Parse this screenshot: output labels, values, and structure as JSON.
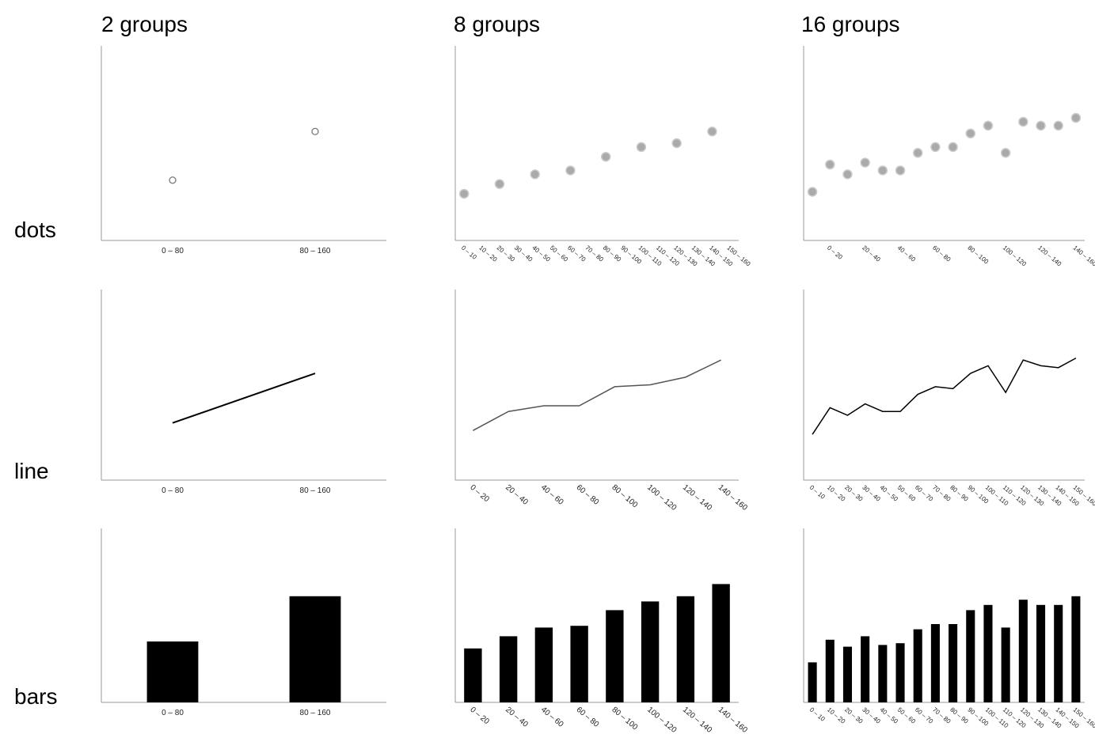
{
  "column_titles": [
    "2 groups",
    "8 groups",
    "16 groups"
  ],
  "row_labels": [
    "dots",
    "line",
    "bars"
  ],
  "chart_data": [
    {
      "type": "scatter",
      "categories": [
        "0 – 80",
        "80 – 160"
      ],
      "values": [
        31,
        56
      ],
      "ylim": [
        0,
        100
      ],
      "color": "#777"
    },
    {
      "type": "scatter",
      "categories": [
        "0 – 10",
        "10 – 20",
        "20 – 30",
        "30 – 40",
        "40 – 50",
        "50 – 60",
        "60 – 70",
        "70 – 80",
        "80 – 90",
        "90 – 100",
        "100 – 110",
        "110 – 120",
        "120 – 130",
        "130 – 140",
        "140 – 150",
        "150 – 160"
      ],
      "values": [
        24,
        null,
        29,
        null,
        34,
        null,
        36,
        null,
        43,
        null,
        48,
        null,
        50,
        null,
        56,
        null
      ],
      "ylim": [
        0,
        100
      ],
      "color": "#aaa"
    },
    {
      "type": "scatter",
      "categories": [
        null,
        "0 – 20",
        null,
        "20 – 40",
        null,
        "40 – 60",
        null,
        "60 – 80",
        null,
        "80 – 100",
        null,
        "100 – 120",
        null,
        "120 – 140",
        null,
        "140 – 160"
      ],
      "values": [
        25,
        39,
        34,
        40,
        36,
        36,
        45,
        48,
        48,
        55,
        59,
        45,
        61,
        59,
        59,
        63
      ],
      "ylim": [
        0,
        100
      ],
      "color": "#aaa"
    },
    {
      "type": "line",
      "categories": [
        "0 – 80",
        "80 – 160"
      ],
      "values": [
        30,
        56
      ],
      "ylim": [
        0,
        100
      ],
      "color": "#000"
    },
    {
      "type": "line",
      "categories": [
        "0 – 20",
        "20 – 40",
        "40 – 60",
        "60 – 80",
        "80 – 100",
        "100 – 120",
        "120 – 140",
        "140 – 160"
      ],
      "values": [
        26,
        36,
        39,
        39,
        49,
        50,
        54,
        63
      ],
      "ylim": [
        0,
        100
      ],
      "color": "#555"
    },
    {
      "type": "line",
      "categories": [
        "0 – 10",
        "10 – 20",
        "20 – 30",
        "30 – 40",
        "40 – 50",
        "50 – 60",
        "60 – 70",
        "70 – 80",
        "80 – 90",
        "90 – 100",
        "100 – 110",
        "110 – 120",
        "120 – 130",
        "130 – 140",
        "140 – 150",
        "150 – 160"
      ],
      "values": [
        24,
        38,
        34,
        40,
        36,
        36,
        45,
        49,
        48,
        56,
        60,
        46,
        63,
        60,
        59,
        64
      ],
      "ylim": [
        0,
        100
      ],
      "color": "#000"
    },
    {
      "type": "bar",
      "categories": [
        "0 – 80",
        "80 – 160"
      ],
      "values": [
        35,
        61
      ],
      "ylim": [
        0,
        100
      ],
      "color": "#000"
    },
    {
      "type": "bar",
      "categories": [
        "0 – 20",
        "20 – 40",
        "40 – 60",
        "60 – 80",
        "80 – 100",
        "100 – 120",
        "120 – 140",
        "140 – 160"
      ],
      "values": [
        31,
        38,
        43,
        44,
        53,
        58,
        61,
        68
      ],
      "ylim": [
        0,
        100
      ],
      "color": "#000"
    },
    {
      "type": "bar",
      "categories": [
        "0 – 10",
        "10 – 20",
        "20 – 30",
        "30 – 40",
        "40 – 50",
        "50 – 60",
        "60 – 70",
        "70 – 80",
        "80 – 90",
        "90 – 100",
        "100 – 110",
        "110 – 120",
        "120 – 130",
        "130 – 140",
        "140 – 150",
        "150 – 160"
      ],
      "values": [
        23,
        36,
        32,
        38,
        33,
        34,
        42,
        45,
        45,
        53,
        56,
        43,
        59,
        56,
        56,
        61
      ],
      "ylim": [
        0,
        100
      ],
      "color": "#000"
    }
  ]
}
